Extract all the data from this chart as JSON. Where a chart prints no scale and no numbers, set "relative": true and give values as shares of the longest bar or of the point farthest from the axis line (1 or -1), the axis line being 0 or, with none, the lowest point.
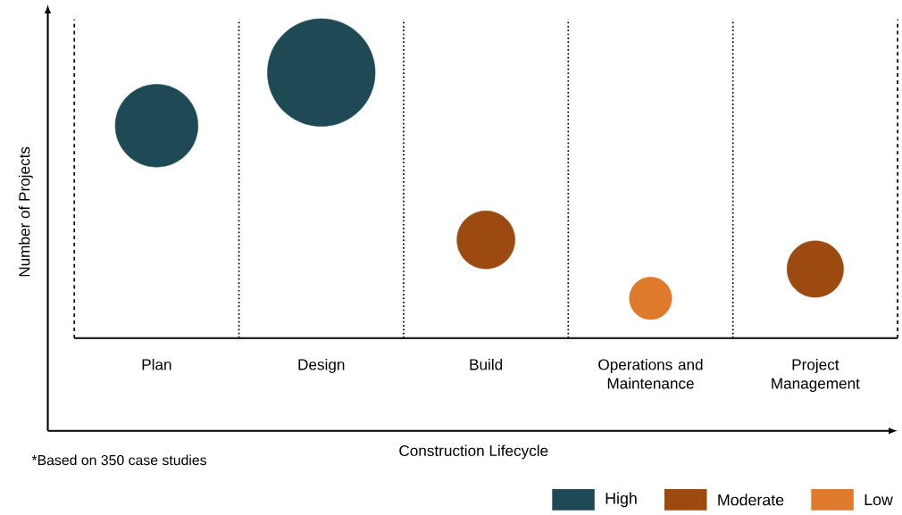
{
  "chart_data": {
    "type": "bubble",
    "relative": true,
    "xlabel": "Construction Lifecycle",
    "ylabel": "Number of Projects",
    "categories": [
      "Plan",
      "Design",
      "Build",
      "Operations and Maintenance",
      "Project Management"
    ],
    "series": [
      {
        "name": "High",
        "color": "#1f4a55",
        "values": [
          0.8,
          1,
          null,
          null,
          null
        ],
        "sizes": [
          0.59,
          1,
          null,
          null,
          null
        ]
      },
      {
        "name": "Moderate",
        "color": "#9c4a10",
        "values": [
          null,
          null,
          0.37,
          null,
          0.26
        ],
        "sizes": [
          null,
          null,
          0.29,
          null,
          0.275
        ]
      },
      {
        "name": "Low",
        "color": "#df7a2c",
        "values": [
          null,
          null,
          null,
          0.15,
          null
        ],
        "sizes": [
          null,
          null,
          null,
          0.155,
          null
        ]
      }
    ],
    "marker": "circle",
    "legend": "bottom right",
    "annotations": [
      "*Based on 350 case studies"
    ]
  }
}
